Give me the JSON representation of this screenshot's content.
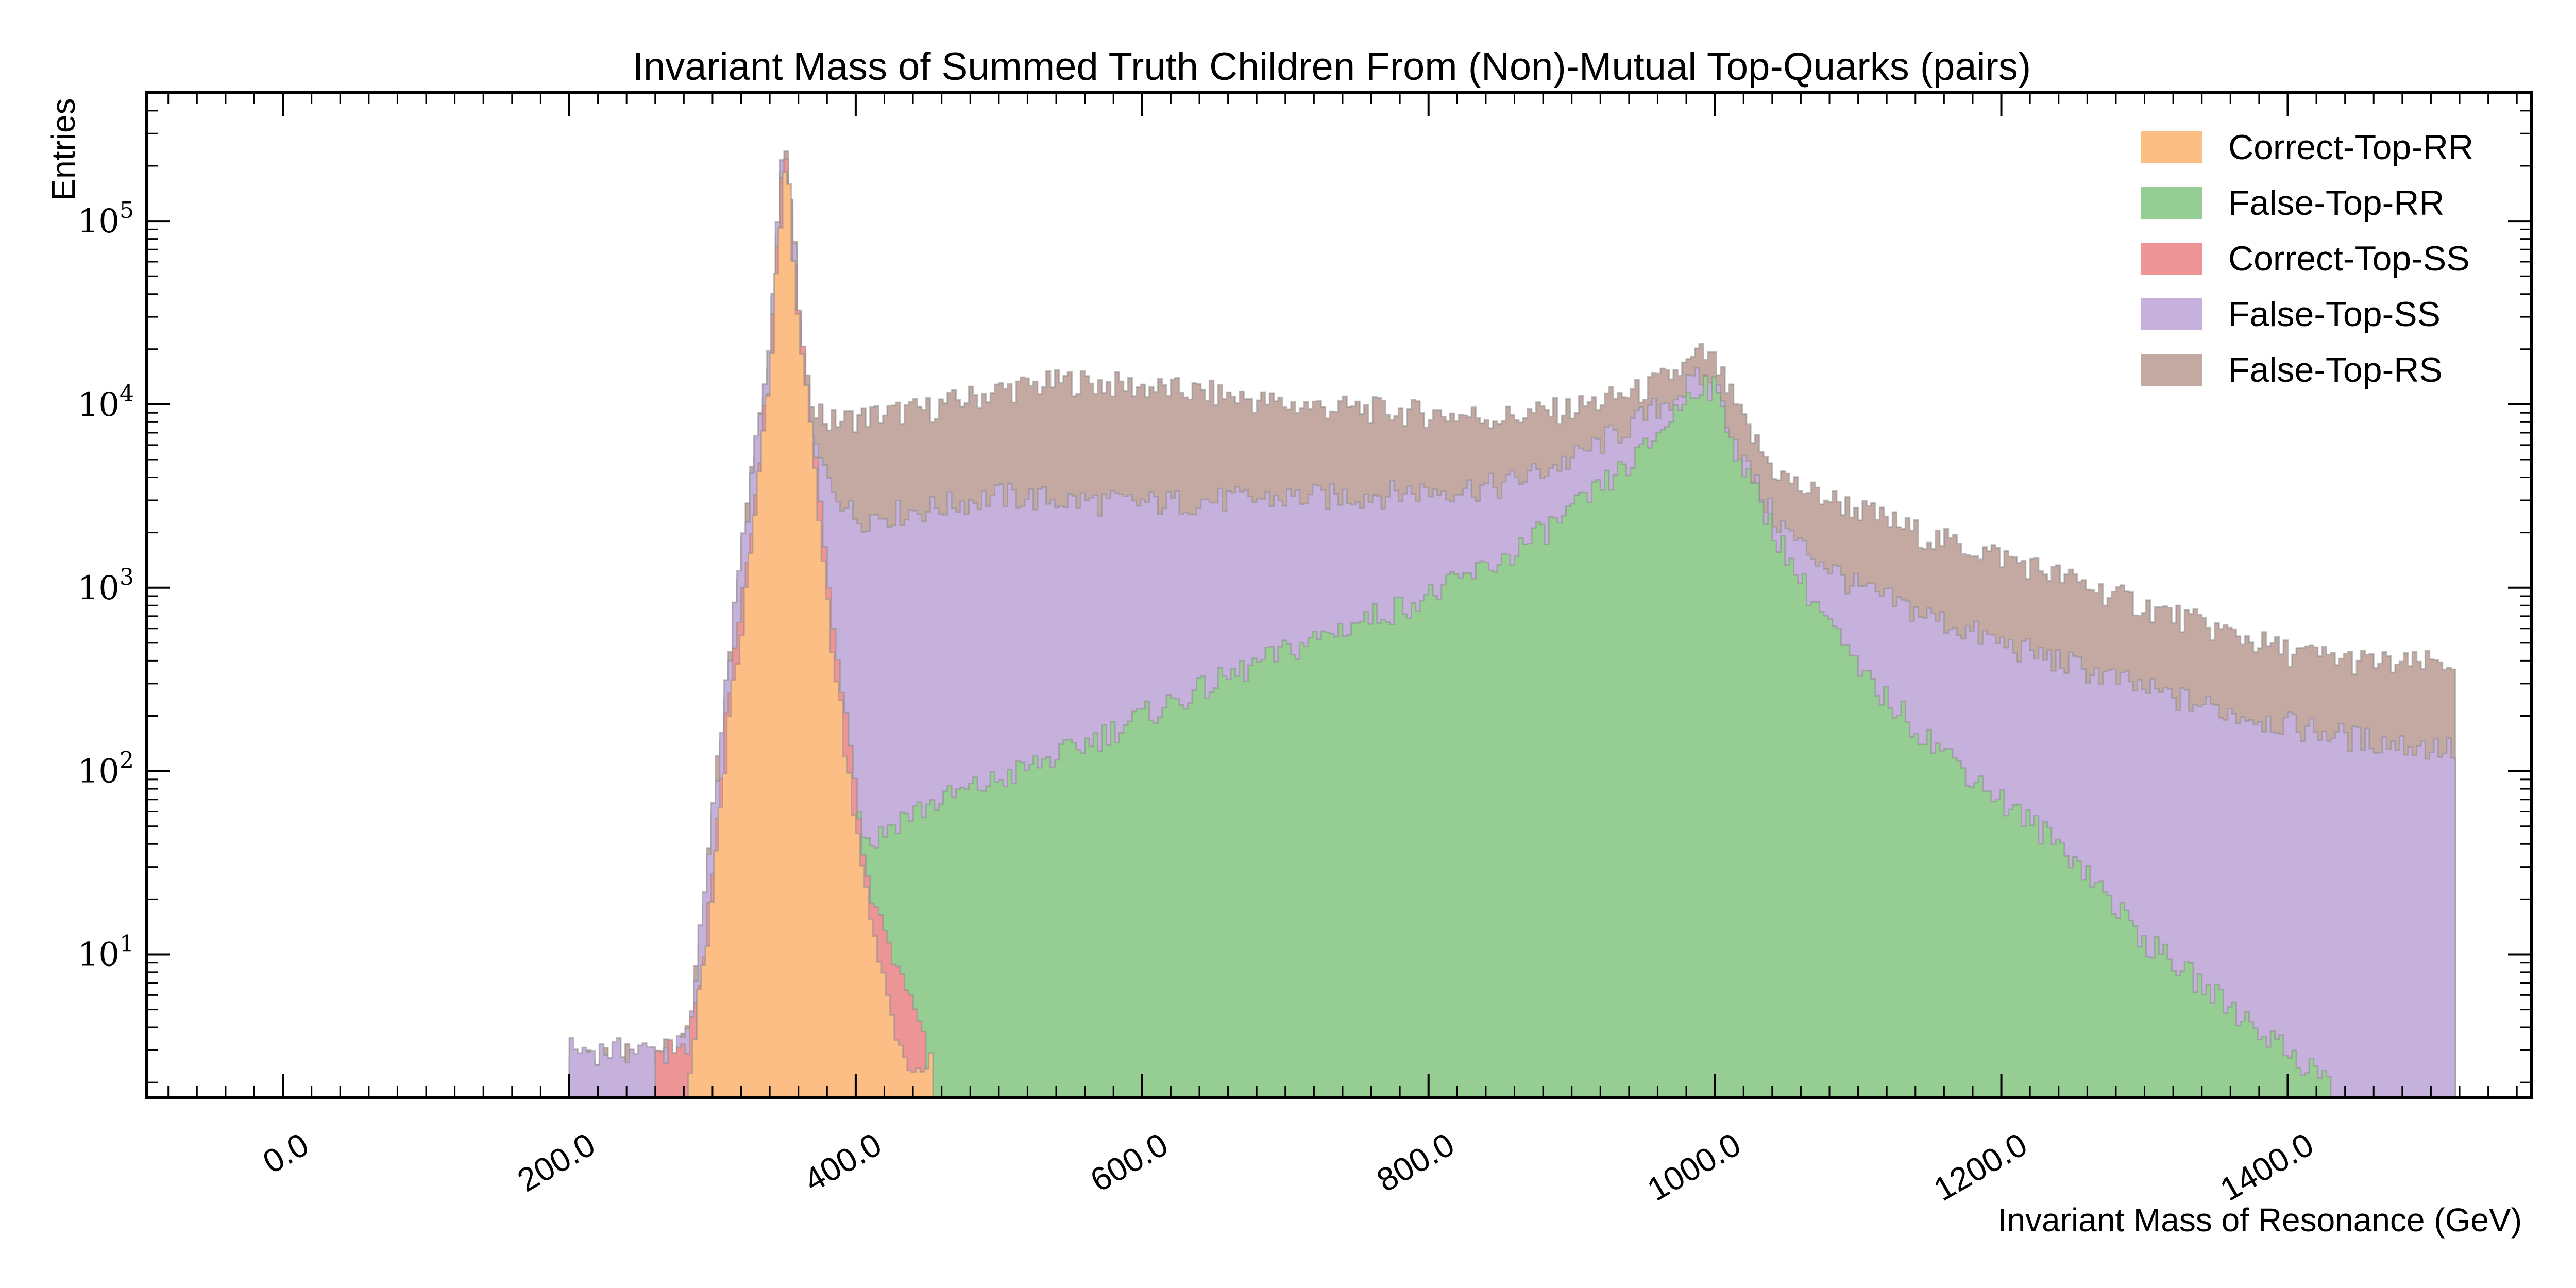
{
  "chart_data": {
    "type": "area",
    "histogram": "stacked step-filled, log y",
    "title": "Invariant Mass of Summed Truth Children From (Non)-Mutual Top-Quarks (pairs)",
    "xlabel": "Invariant Mass of Resonance (GeV)",
    "ylabel": "Entries",
    "xlim": [
      -95,
      1570
    ],
    "ylim_log10": [
      0.22,
      5.7
    ],
    "y_scale": "log",
    "grid": false,
    "legend_position": "top-right",
    "x_ticks": [
      {
        "value": 0,
        "label": "0.0"
      },
      {
        "value": 200,
        "label": "200.0"
      },
      {
        "value": 400,
        "label": "400.0"
      },
      {
        "value": 600,
        "label": "600.0"
      },
      {
        "value": 800,
        "label": "800.0"
      },
      {
        "value": 1000,
        "label": "1000.0"
      },
      {
        "value": 1200,
        "label": "1200.0"
      },
      {
        "value": 1400,
        "label": "1400.0"
      }
    ],
    "y_ticks": [
      {
        "exponent": 1,
        "base": "10",
        "exp": "1"
      },
      {
        "exponent": 2,
        "base": "10",
        "exp": "2"
      },
      {
        "exponent": 3,
        "base": "10",
        "exp": "3"
      },
      {
        "exponent": 4,
        "base": "10",
        "exp": "4"
      },
      {
        "exponent": 5,
        "base": "10",
        "exp": "5"
      }
    ],
    "series_cumulative_note": "each series lists the top of its stacked band (cumulative entries) as [mass GeV, entries]",
    "series": [
      {
        "name": "False-Top-RS",
        "color": "#c4a9a2",
        "points": [
          [
            200,
            3
          ],
          [
            245,
            3
          ],
          [
            275,
            3
          ],
          [
            285,
            4
          ],
          [
            300,
            60
          ],
          [
            320,
            1500
          ],
          [
            340,
            20000
          ],
          [
            350,
            280000
          ],
          [
            358,
            60000
          ],
          [
            365,
            13000
          ],
          [
            380,
            8000
          ],
          [
            400,
            8500
          ],
          [
            450,
            9500
          ],
          [
            500,
            12000
          ],
          [
            550,
            13500
          ],
          [
            600,
            12500
          ],
          [
            650,
            11500
          ],
          [
            700,
            10000
          ],
          [
            750,
            9500
          ],
          [
            800,
            9000
          ],
          [
            850,
            8500
          ],
          [
            900,
            9500
          ],
          [
            950,
            12000
          ],
          [
            980,
            16000
          ],
          [
            990,
            19000
          ],
          [
            1000,
            17000
          ],
          [
            1020,
            8000
          ],
          [
            1040,
            4500
          ],
          [
            1060,
            3500
          ],
          [
            1100,
            2700
          ],
          [
            1150,
            1900
          ],
          [
            1200,
            1500
          ],
          [
            1250,
            1100
          ],
          [
            1300,
            800
          ],
          [
            1350,
            600
          ],
          [
            1400,
            450
          ],
          [
            1450,
            400
          ],
          [
            1480,
            380
          ],
          [
            1518,
            400
          ]
        ]
      },
      {
        "name": "False-Top-SS",
        "color": "#c6b1dd",
        "points": [
          [
            200,
            3
          ],
          [
            245,
            3
          ],
          [
            275,
            3
          ],
          [
            285,
            4
          ],
          [
            300,
            60
          ],
          [
            320,
            1500
          ],
          [
            340,
            20000
          ],
          [
            350,
            280000
          ],
          [
            358,
            60000
          ],
          [
            365,
            8000
          ],
          [
            380,
            4000
          ],
          [
            400,
            2400
          ],
          [
            450,
            2700
          ],
          [
            500,
            3200
          ],
          [
            550,
            3000
          ],
          [
            600,
            2900
          ],
          [
            650,
            3000
          ],
          [
            700,
            3100
          ],
          [
            750,
            3200
          ],
          [
            800,
            3400
          ],
          [
            850,
            3600
          ],
          [
            900,
            5000
          ],
          [
            950,
            8500
          ],
          [
            990,
            14000
          ],
          [
            1000,
            13000
          ],
          [
            1020,
            5000
          ],
          [
            1040,
            2500
          ],
          [
            1060,
            1700
          ],
          [
            1100,
            1000
          ],
          [
            1150,
            700
          ],
          [
            1200,
            500
          ],
          [
            1250,
            380
          ],
          [
            1300,
            280
          ],
          [
            1350,
            220
          ],
          [
            1400,
            180
          ],
          [
            1450,
            150
          ],
          [
            1518,
            130
          ]
        ]
      },
      {
        "name": "False-Top-RR",
        "color": "#96cd92",
        "points": [
          [
            350,
            0
          ],
          [
            360,
            0
          ],
          [
            375,
            80
          ],
          [
            395,
            80
          ],
          [
            410,
            40
          ],
          [
            430,
            55
          ],
          [
            460,
            70
          ],
          [
            500,
            90
          ],
          [
            550,
            130
          ],
          [
            600,
            200
          ],
          [
            650,
            300
          ],
          [
            700,
            450
          ],
          [
            750,
            650
          ],
          [
            800,
            900
          ],
          [
            850,
            1400
          ],
          [
            900,
            2600
          ],
          [
            950,
            5500
          ],
          [
            990,
            13500
          ],
          [
            1000,
            12000
          ],
          [
            1020,
            4500
          ],
          [
            1040,
            2200
          ],
          [
            1060,
            1100
          ],
          [
            1080,
            650
          ],
          [
            1100,
            350
          ],
          [
            1150,
            150
          ],
          [
            1200,
            70
          ],
          [
            1250,
            35
          ],
          [
            1300,
            12
          ],
          [
            1350,
            6
          ],
          [
            1400,
            3
          ],
          [
            1430,
            2
          ]
        ]
      },
      {
        "name": "Correct-Top-SS",
        "color": "#ed9497",
        "points": [
          [
            260,
            3
          ],
          [
            280,
            3
          ],
          [
            290,
            5
          ],
          [
            300,
            30
          ],
          [
            310,
            200
          ],
          [
            320,
            800
          ],
          [
            330,
            3000
          ],
          [
            340,
            15000
          ],
          [
            348,
            150000
          ],
          [
            352,
            270000
          ],
          [
            356,
            80000
          ],
          [
            365,
            15000
          ],
          [
            375,
            3000
          ],
          [
            385,
            500
          ],
          [
            395,
            150
          ],
          [
            410,
            20
          ],
          [
            430,
            8
          ],
          [
            450,
            3
          ]
        ]
      },
      {
        "name": "Correct-Top-RR",
        "color": "#fdbe85",
        "points": [
          [
            280,
            0
          ],
          [
            285,
            3
          ],
          [
            300,
            20
          ],
          [
            310,
            150
          ],
          [
            320,
            600
          ],
          [
            330,
            2500
          ],
          [
            340,
            13000
          ],
          [
            348,
            120000
          ],
          [
            352,
            250000
          ],
          [
            356,
            70000
          ],
          [
            365,
            12000
          ],
          [
            375,
            2500
          ],
          [
            385,
            400
          ],
          [
            395,
            100
          ],
          [
            410,
            15
          ],
          [
            425,
            5
          ],
          [
            440,
            2
          ],
          [
            455,
            3
          ]
        ]
      }
    ],
    "stack_order_top_to_bottom": [
      "False-Top-RS",
      "False-Top-SS",
      "False-Top-RR",
      "Correct-Top-SS",
      "Correct-Top-RR"
    ]
  }
}
